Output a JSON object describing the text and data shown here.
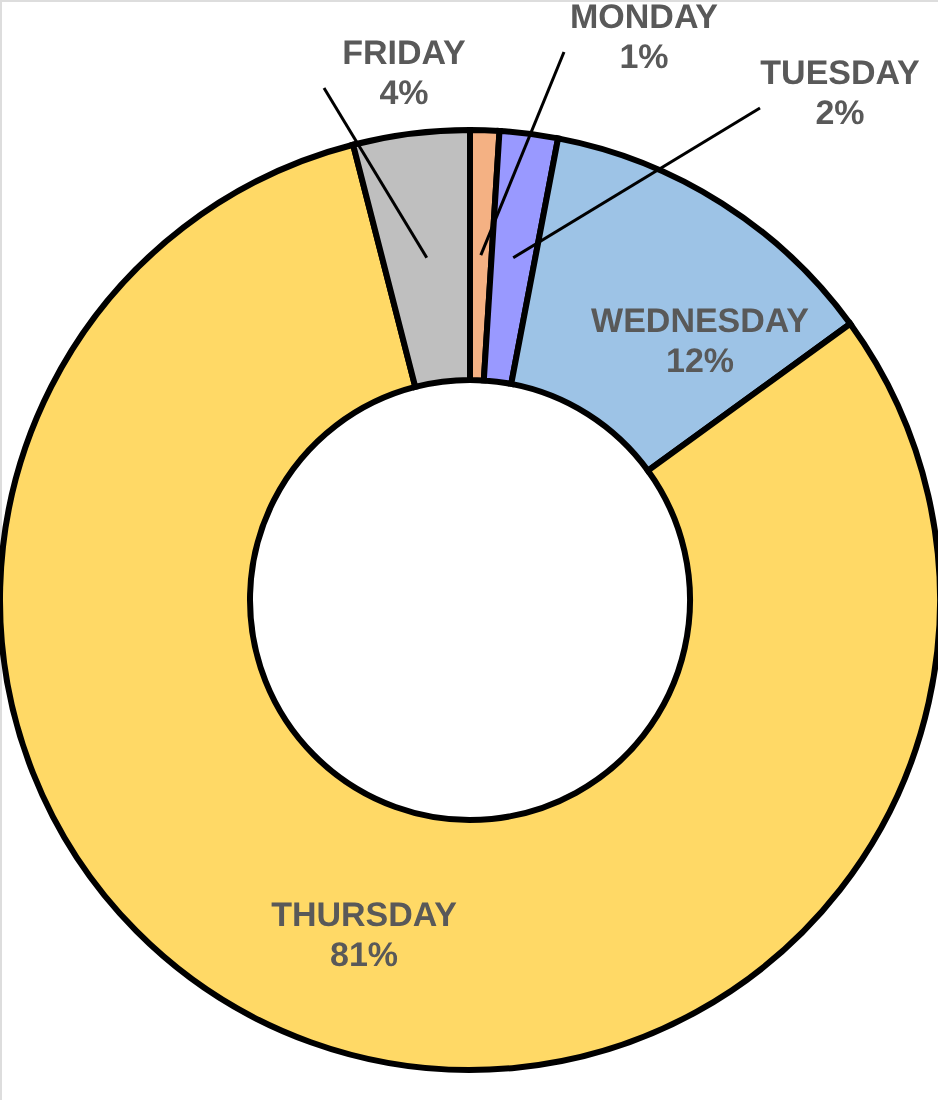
{
  "chart_data": {
    "type": "donut",
    "categories": [
      "MONDAY",
      "TUESDAY",
      "WEDNESDAY",
      "THURSDAY",
      "FRIDAY"
    ],
    "values": [
      1,
      2,
      12,
      81,
      4
    ],
    "colors": [
      "#f4b183",
      "#9999ff",
      "#9dc3e6",
      "#ffd966",
      "#bfbfbf"
    ],
    "value_labels": [
      "1%",
      "2%",
      "12%",
      "81%",
      "4%"
    ]
  }
}
